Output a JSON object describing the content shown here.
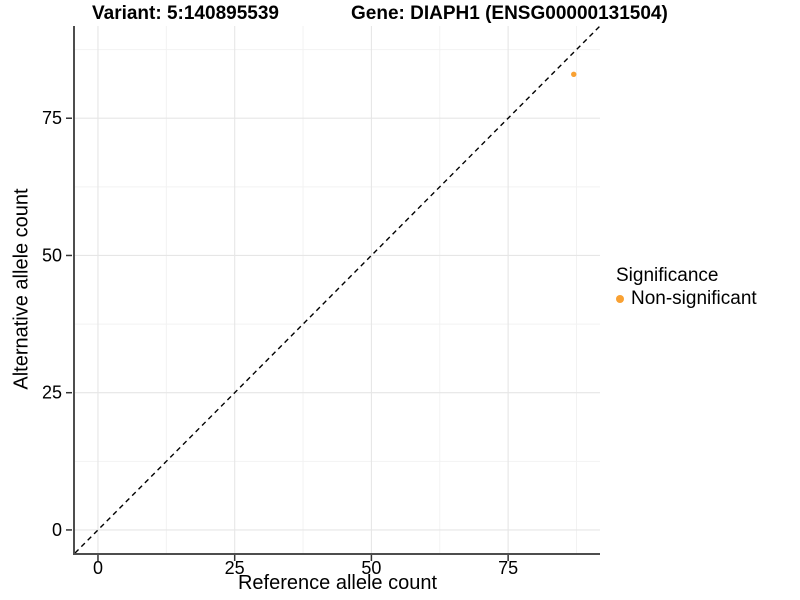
{
  "chart_data": {
    "type": "scatter",
    "title_left": "Variant: 5:140895539",
    "title_right": "Gene: DIAPH1 (ENSG00000131504)",
    "xlabel": "Reference allele count",
    "ylabel": "Alternative allele count",
    "xlim": [
      -4.2,
      91.8
    ],
    "ylim": [
      -4.2,
      91.8
    ],
    "x_ticks": [
      0,
      25,
      50,
      75
    ],
    "y_ticks": [
      0,
      25,
      50,
      75
    ],
    "minor_step": 12.5,
    "grid": "major and minor, light gray on white",
    "identity_line": {
      "type": "y=x",
      "style": "dashed",
      "color": "#000000"
    },
    "series": [
      {
        "name": "Non-significant",
        "color": "#F9A132",
        "points": [
          {
            "x": 87,
            "y": 83
          }
        ]
      }
    ],
    "legend": {
      "title": "Significance",
      "position": "right",
      "entries": [
        {
          "label": "Non-significant",
          "color": "#F9A132"
        }
      ]
    }
  },
  "colors": {
    "background": "#FFFFFF",
    "axis_line": "#4D4D4D",
    "tick_mark": "#333333",
    "grid_major": "#E6E6E6",
    "grid_minor": "#F2F2F2",
    "text": "#000000"
  }
}
